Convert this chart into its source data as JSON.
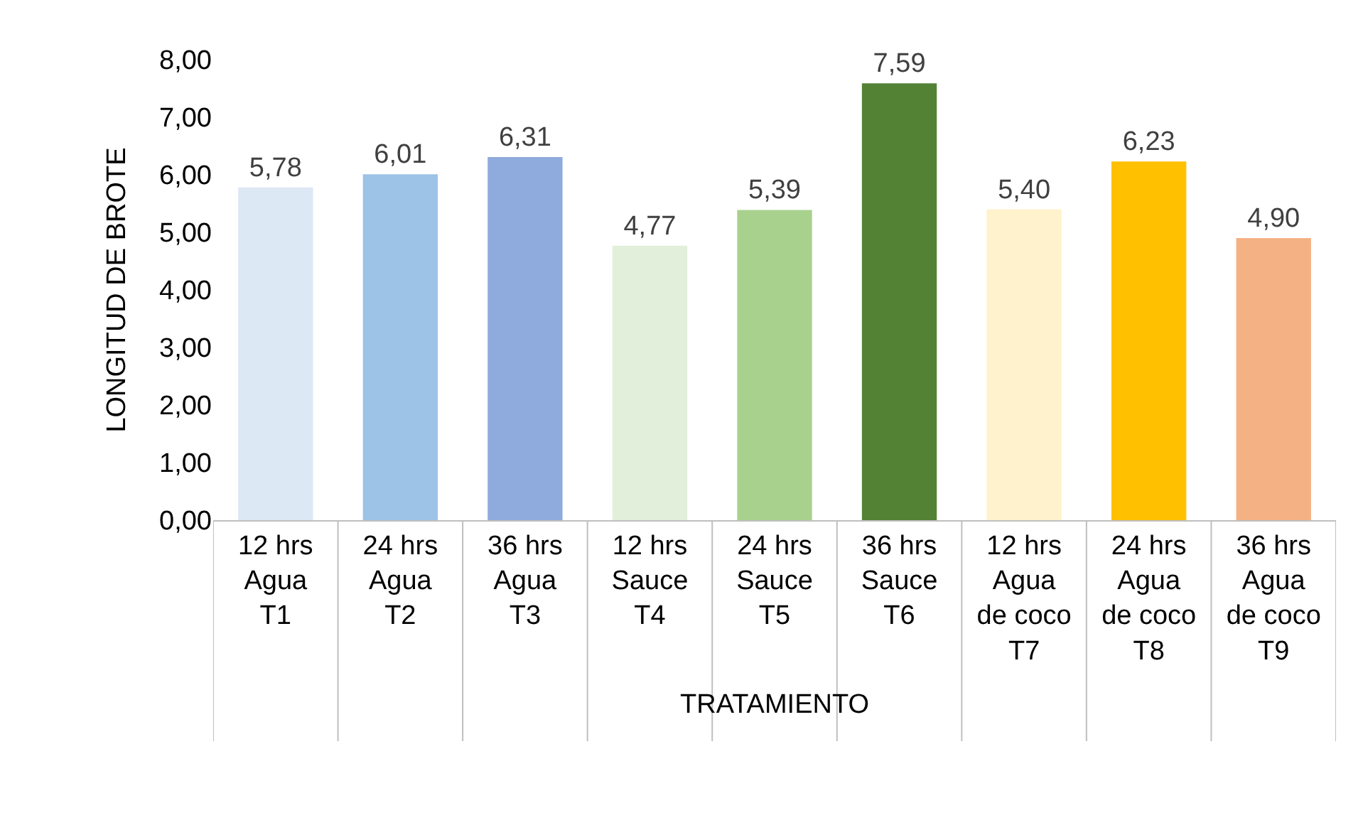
{
  "chart_data": {
    "type": "bar",
    "xlabel": "TRATAMIENTO",
    "ylabel": "LONGITUD DE BROTE",
    "categories": [
      "12 hrs\nAgua\nT1",
      "24 hrs\nAgua\nT2",
      "36 hrs\nAgua\nT3",
      "12 hrs\nSauce\nT4",
      "24 hrs\nSauce\nT5",
      "36 hrs\nSauce\nT6",
      "12 hrs\nAgua\nde coco\nT7",
      "24 hrs\nAgua\nde coco\nT8",
      "36 hrs\nAgua\nde coco\nT9"
    ],
    "values": [
      5.78,
      6.01,
      6.31,
      4.77,
      5.39,
      7.59,
      5.4,
      6.23,
      4.9
    ],
    "colors": [
      "#dde8f5",
      "#9dc3e6",
      "#8faadc",
      "#e2efda",
      "#a9d18e",
      "#548235",
      "#fff2cc",
      "#ffc000",
      "#f4b183"
    ],
    "value_labels": [
      "5,78",
      "6,01",
      "6,31",
      "4,77",
      "5,39",
      "7,59",
      "5,40",
      "6,23",
      "4,90"
    ],
    "ylim": [
      0,
      8
    ],
    "yticks": [
      {
        "value": 0,
        "label": "0,00"
      },
      {
        "value": 1,
        "label": "1,00"
      },
      {
        "value": 2,
        "label": "2,00"
      },
      {
        "value": 3,
        "label": "3,00"
      },
      {
        "value": 4,
        "label": "4,00"
      },
      {
        "value": 5,
        "label": "5,00"
      },
      {
        "value": 6,
        "label": "6,00"
      },
      {
        "value": 7,
        "label": "7,00"
      },
      {
        "value": 8,
        "label": "8,00"
      }
    ],
    "grid": false,
    "legend": false
  }
}
